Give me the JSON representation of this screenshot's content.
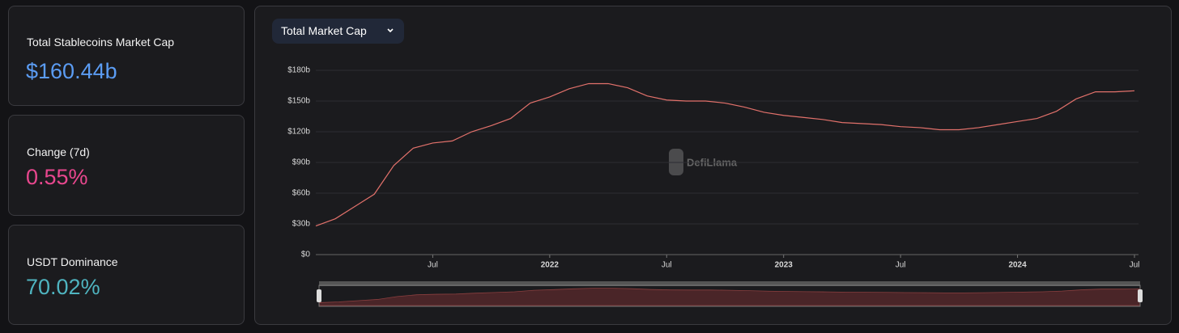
{
  "cards": [
    {
      "label": "Total Stablecoins Market Cap",
      "value": "$160.44b",
      "color": "#5b9cf3"
    },
    {
      "label": "Change (7d)",
      "value": "0.55%",
      "color": "#e8478e"
    },
    {
      "label": "USDT Dominance",
      "value": "70.02%",
      "color": "#4fb4c0"
    }
  ],
  "dropdown": "Total Market Cap",
  "chart_data": {
    "type": "line",
    "watermark": "DefiLlama",
    "color": "#e2716b",
    "grid": true,
    "x": [
      "2021-01",
      "2021-02",
      "2021-03",
      "2021-04",
      "2021-05",
      "2021-06",
      "2021-07",
      "2021-08",
      "2021-09",
      "2021-10",
      "2021-11",
      "2021-12",
      "2022-01",
      "2022-02",
      "2022-03",
      "2022-04",
      "2022-05",
      "2022-06",
      "2022-07",
      "2022-08",
      "2022-09",
      "2022-10",
      "2022-11",
      "2022-12",
      "2023-01",
      "2023-02",
      "2023-03",
      "2023-04",
      "2023-05",
      "2023-06",
      "2023-07",
      "2023-08",
      "2023-09",
      "2023-10",
      "2023-11",
      "2023-12",
      "2024-01",
      "2024-02",
      "2024-03",
      "2024-04",
      "2024-05",
      "2024-06",
      "2024-07"
    ],
    "values": [
      28,
      35,
      47,
      59,
      87,
      104,
      109,
      111,
      120,
      126,
      133,
      148,
      154,
      162,
      167,
      167,
      163,
      155,
      151,
      150,
      150,
      148,
      144,
      139,
      136,
      134,
      132,
      129,
      128,
      127,
      125,
      124,
      122,
      122,
      124,
      127,
      130,
      133,
      140,
      152,
      159,
      159,
      160
    ],
    "xlim": [
      "2021-01",
      "2024-07"
    ],
    "xticks": [
      {
        "value": "2021-07",
        "label": "Jul"
      },
      {
        "value": "2022-01",
        "label": "2022"
      },
      {
        "value": "2022-07",
        "label": "Jul"
      },
      {
        "value": "2023-01",
        "label": "2023"
      },
      {
        "value": "2023-07",
        "label": "Jul"
      },
      {
        "value": "2024-01",
        "label": "2024"
      },
      {
        "value": "2024-07",
        "label": "Jul"
      }
    ],
    "ylim": [
      0,
      180
    ],
    "yticks": [
      {
        "value": 0,
        "label": "$0"
      },
      {
        "value": 30,
        "label": "$30b"
      },
      {
        "value": 60,
        "label": "$60b"
      },
      {
        "value": 90,
        "label": "$90b"
      },
      {
        "value": 120,
        "label": "$120b"
      },
      {
        "value": 150,
        "label": "$150b"
      },
      {
        "value": 180,
        "label": "$180b"
      }
    ]
  }
}
